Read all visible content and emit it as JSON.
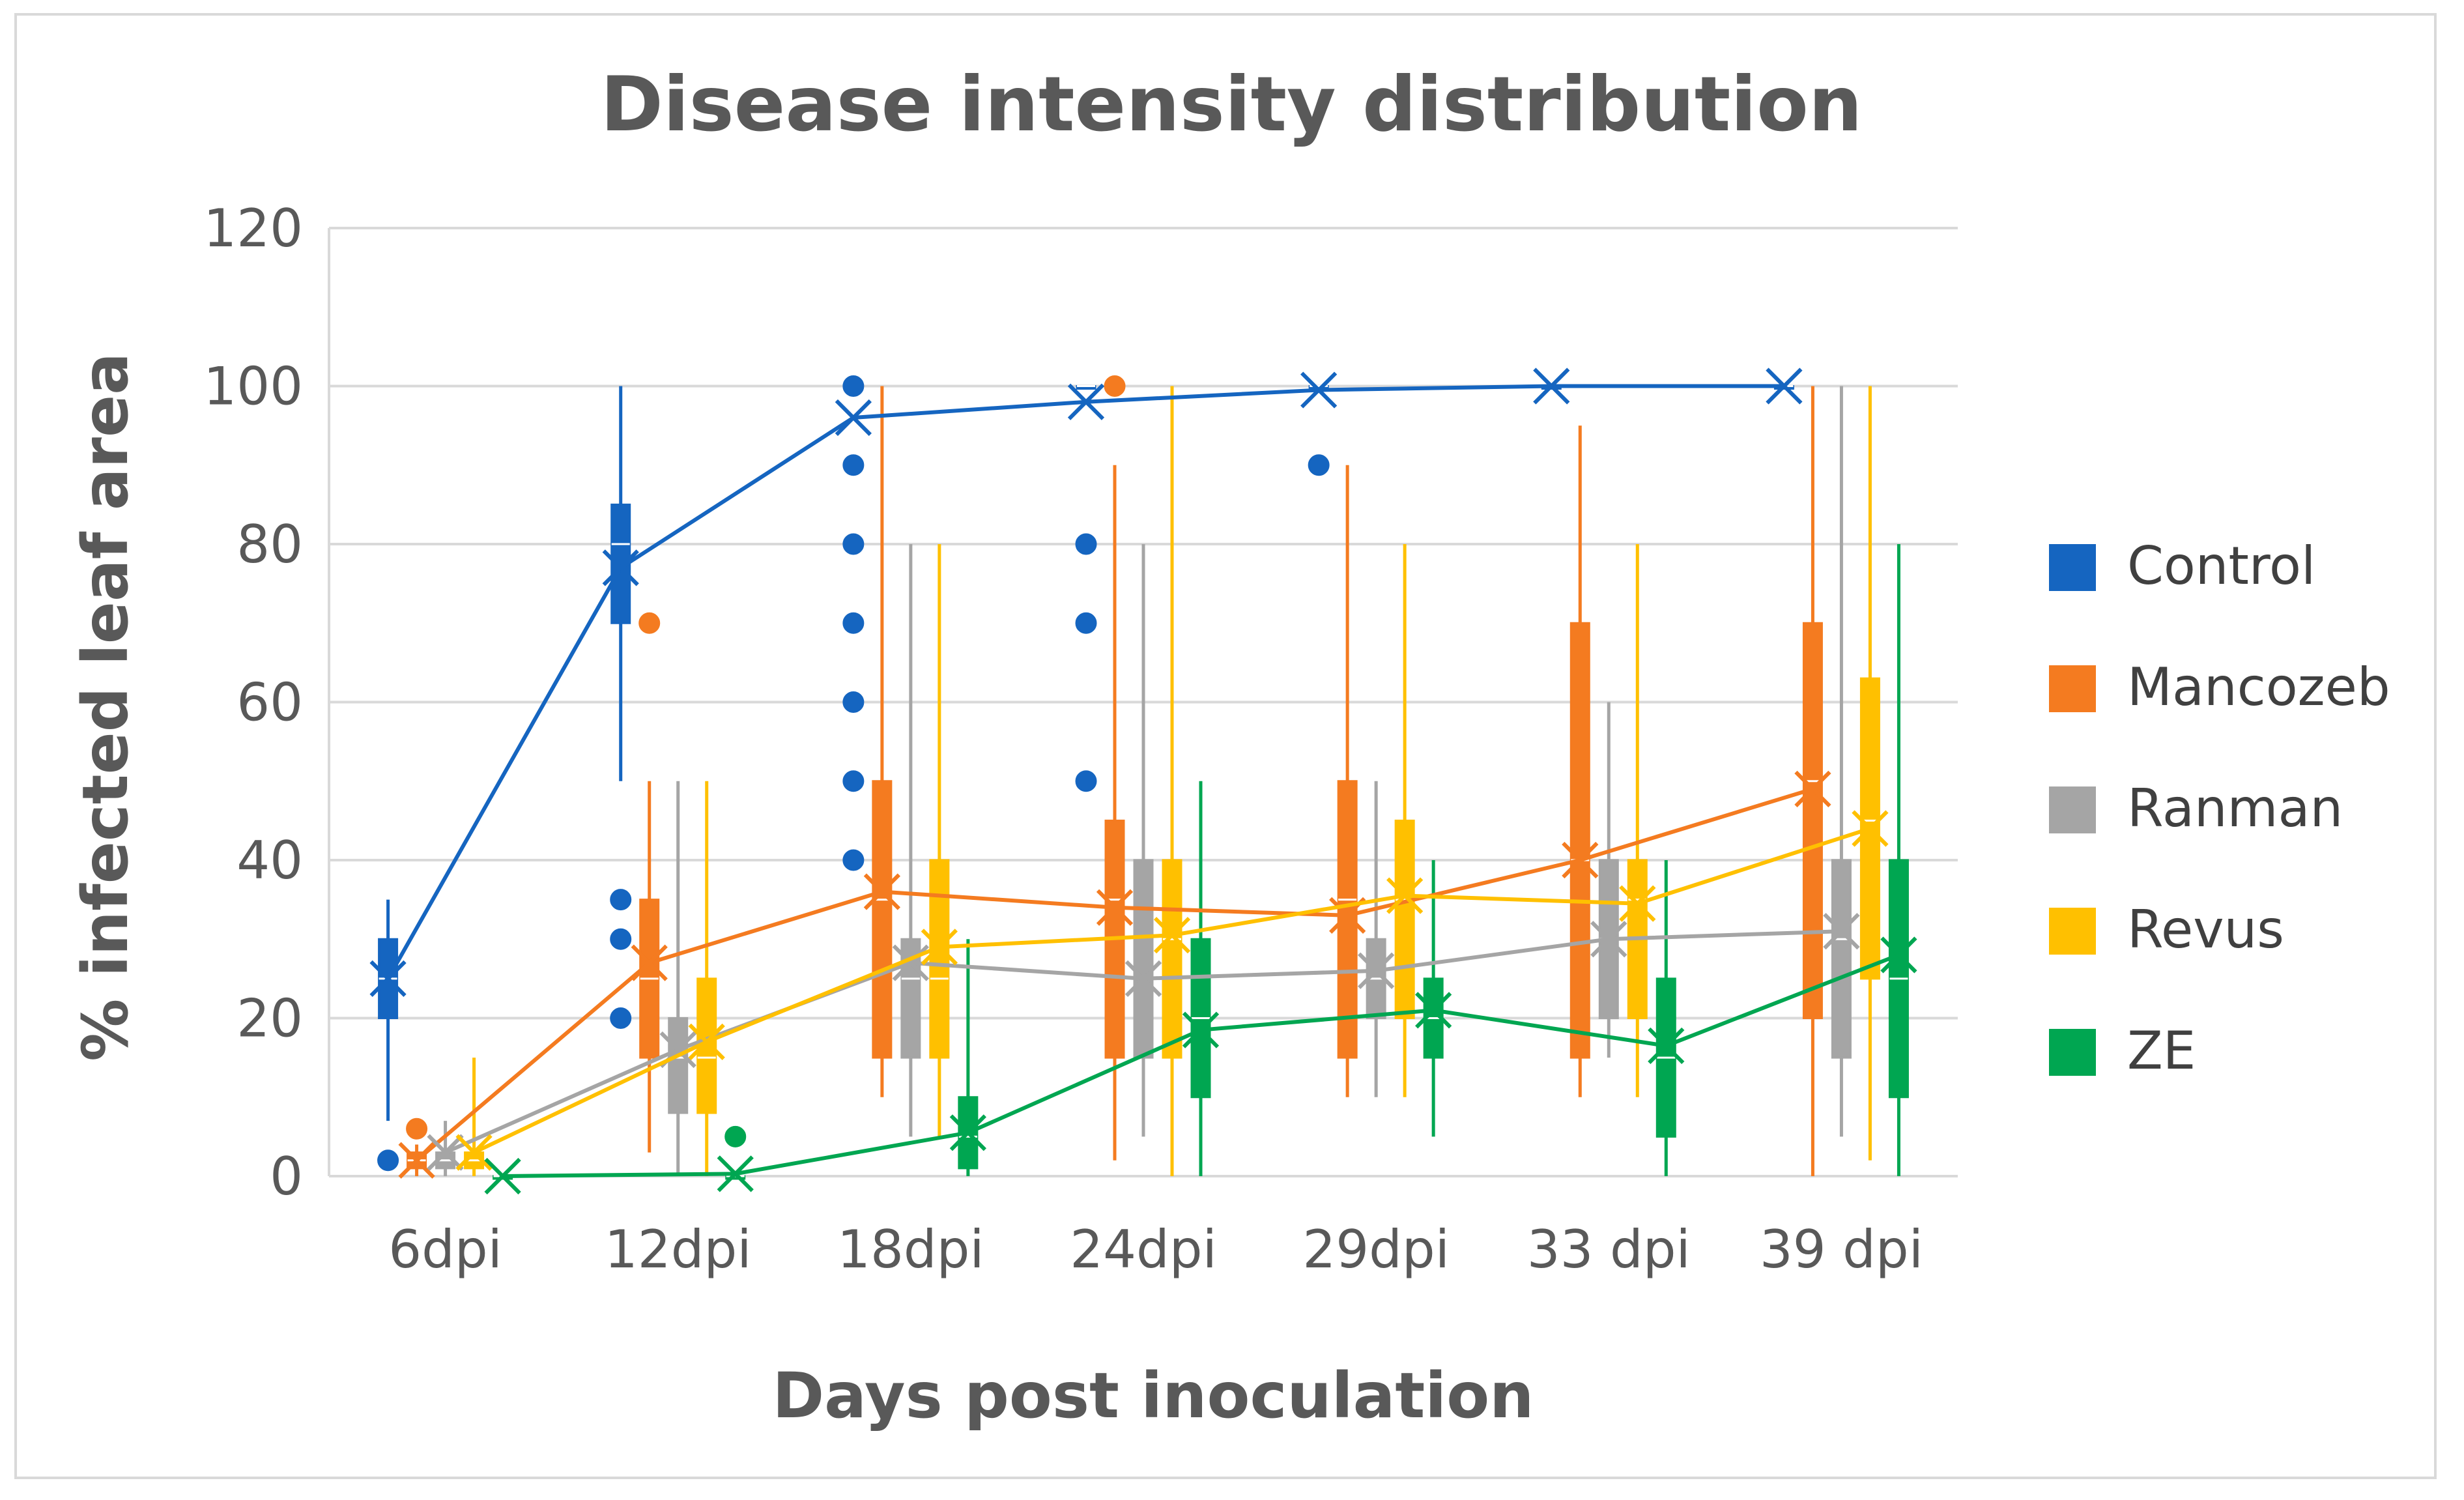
{
  "chart_data": {
    "type": "box",
    "title": "Disease intensity distribution",
    "xlabel": "Days post inoculation",
    "ylabel": "% infected leaf area",
    "ylim": [
      0,
      120
    ],
    "yticks": [
      0,
      20,
      40,
      60,
      80,
      100,
      120
    ],
    "grid": true,
    "legend_position": "right",
    "categories": [
      "6dpi",
      "12dpi",
      "18dpi",
      "24dpi",
      "29dpi",
      "33 dpi",
      "39 dpi"
    ],
    "series": [
      {
        "name": "Control",
        "color": "#1565C0",
        "stats": [
          {
            "min": 7,
            "q1": 20,
            "median": 25,
            "q3": 30,
            "max": 35,
            "mean": 25
          },
          {
            "min": 50,
            "q1": 70,
            "median": 80,
            "q3": 85,
            "max": 100,
            "mean": 77
          },
          {
            "min": 100,
            "q1": 100,
            "median": 100,
            "q3": 100,
            "max": 100,
            "mean": 96
          },
          {
            "min": 100,
            "q1": 100,
            "median": 100,
            "q3": 100,
            "max": 100,
            "mean": 98
          },
          {
            "min": 100,
            "q1": 100,
            "median": 100,
            "q3": 100,
            "max": 100,
            "mean": 99.5
          },
          {
            "min": 100,
            "q1": 100,
            "median": 100,
            "q3": 100,
            "max": 100,
            "mean": 100
          },
          {
            "min": 100,
            "q1": 100,
            "median": 100,
            "q3": 100,
            "max": 100,
            "mean": 100
          }
        ],
        "outliers": [
          [
            2
          ],
          [
            20,
            30,
            35
          ],
          [
            40,
            50,
            60,
            70,
            80,
            90,
            100
          ],
          [
            50,
            70,
            80
          ],
          [
            90
          ],
          [],
          []
        ]
      },
      {
        "name": "Mancozeb",
        "color": "#F47B20",
        "stats": [
          {
            "min": 0,
            "q1": 1,
            "median": 2,
            "q3": 3,
            "max": 4,
            "mean": 2
          },
          {
            "min": 3,
            "q1": 15,
            "median": 25,
            "q3": 35,
            "max": 50,
            "mean": 27
          },
          {
            "min": 10,
            "q1": 15,
            "median": 35,
            "q3": 50,
            "max": 100,
            "mean": 36
          },
          {
            "min": 2,
            "q1": 15,
            "median": 35,
            "q3": 45,
            "max": 90,
            "mean": 34
          },
          {
            "min": 10,
            "q1": 15,
            "median": 35,
            "q3": 50,
            "max": 90,
            "mean": 33
          },
          {
            "min": 10,
            "q1": 15,
            "median": 40,
            "q3": 70,
            "max": 95,
            "mean": 40
          },
          {
            "min": 0,
            "q1": 20,
            "median": 50,
            "q3": 70,
            "max": 100,
            "mean": 49
          }
        ],
        "outliers": [
          [
            6
          ],
          [
            70
          ],
          [],
          [
            100
          ],
          [],
          [],
          []
        ]
      },
      {
        "name": "Ranman",
        "color": "#A5A5A5",
        "stats": [
          {
            "min": 0,
            "q1": 1,
            "median": 2,
            "q3": 3,
            "max": 7,
            "mean": 3
          },
          {
            "min": 0,
            "q1": 8,
            "median": 15,
            "q3": 20,
            "max": 50,
            "mean": 16
          },
          {
            "min": 5,
            "q1": 15,
            "median": 25,
            "q3": 30,
            "max": 80,
            "mean": 27
          },
          {
            "min": 5,
            "q1": 15,
            "median": 25,
            "q3": 40,
            "max": 80,
            "mean": 25
          },
          {
            "min": 10,
            "q1": 20,
            "median": 25,
            "q3": 30,
            "max": 50,
            "mean": 26
          },
          {
            "min": 15,
            "q1": 20,
            "median": 30,
            "q3": 40,
            "max": 60,
            "mean": 30
          },
          {
            "min": 5,
            "q1": 15,
            "median": 30,
            "q3": 40,
            "max": 100,
            "mean": 31
          }
        ],
        "outliers": [
          [],
          [],
          [],
          [],
          [],
          [],
          []
        ]
      },
      {
        "name": "Revus",
        "color": "#FFC000",
        "stats": [
          {
            "min": 0,
            "q1": 1,
            "median": 2,
            "q3": 3,
            "max": 15,
            "mean": 3
          },
          {
            "min": 0,
            "q1": 8,
            "median": 15,
            "q3": 25,
            "max": 50,
            "mean": 17
          },
          {
            "min": 5,
            "q1": 15,
            "median": 25,
            "q3": 40,
            "max": 80,
            "mean": 29
          },
          {
            "min": 0,
            "q1": 15,
            "median": 30,
            "q3": 40,
            "max": 100,
            "mean": 30.5
          },
          {
            "min": 10,
            "q1": 20,
            "median": 35,
            "q3": 45,
            "max": 80,
            "mean": 35.5
          },
          {
            "min": 10,
            "q1": 20,
            "median": 35,
            "q3": 40,
            "max": 80,
            "mean": 34.5
          },
          {
            "min": 2,
            "q1": 25,
            "median": 45,
            "q3": 63,
            "max": 100,
            "mean": 44
          }
        ],
        "outliers": [
          [],
          [],
          [],
          [],
          [],
          [],
          []
        ]
      },
      {
        "name": "ZE",
        "color": "#00A651",
        "stats": [
          {
            "min": 0,
            "q1": 0,
            "median": 0,
            "q3": 0,
            "max": 0,
            "mean": 0
          },
          {
            "min": 0,
            "q1": 0,
            "median": 0,
            "q3": 0,
            "max": 0,
            "mean": 0.3
          },
          {
            "min": 0,
            "q1": 1,
            "median": 5,
            "q3": 10,
            "max": 30,
            "mean": 5.5
          },
          {
            "min": 0,
            "q1": 10,
            "median": 20,
            "q3": 30,
            "max": 50,
            "mean": 18.5
          },
          {
            "min": 5,
            "q1": 15,
            "median": 20,
            "q3": 25,
            "max": 40,
            "mean": 21
          },
          {
            "min": 0,
            "q1": 5,
            "median": 15,
            "q3": 25,
            "max": 40,
            "mean": 16.5
          },
          {
            "min": 0,
            "q1": 10,
            "median": 25,
            "q3": 40,
            "max": 80,
            "mean": 28
          }
        ],
        "outliers": [
          [],
          [
            5
          ],
          [],
          [],
          [],
          [],
          []
        ]
      }
    ]
  }
}
